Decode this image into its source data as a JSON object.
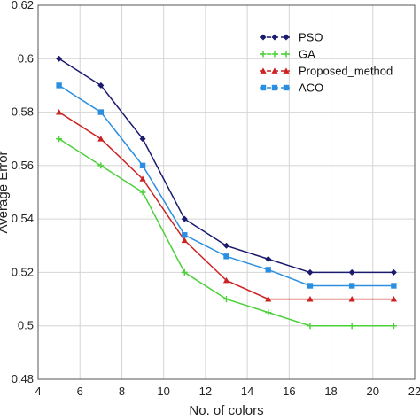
{
  "chart_data": {
    "type": "line",
    "title": "",
    "xlabel": "No. of colors",
    "ylabel": "Average Error",
    "xlim": [
      4,
      22
    ],
    "ylim": [
      0.48,
      0.62
    ],
    "xticks": [
      4,
      6,
      8,
      10,
      12,
      14,
      16,
      18,
      20,
      22
    ],
    "yticks": [
      0.48,
      0.5,
      0.52,
      0.54,
      0.56,
      0.58,
      0.6,
      0.62
    ],
    "ytick_labels": [
      "0.48",
      "0.5",
      "0.52",
      "0.54",
      "0.56",
      "0.58",
      "0.6",
      "0.62"
    ],
    "grid": true,
    "legend_position": "top-right",
    "x": [
      5,
      7,
      9,
      11,
      13,
      15,
      17,
      19,
      21
    ],
    "series": [
      {
        "name": "PSO",
        "color": "#1a1a6e",
        "marker": "diamond",
        "values": [
          0.6,
          0.59,
          0.57,
          0.54,
          0.53,
          0.525,
          0.52,
          0.52,
          0.52
        ]
      },
      {
        "name": "GA",
        "color": "#4cd13a",
        "marker": "plus",
        "values": [
          0.57,
          0.56,
          0.55,
          0.52,
          0.51,
          0.505,
          0.5,
          0.5,
          0.5
        ]
      },
      {
        "name": "Proposed_method",
        "color": "#cc2222",
        "marker": "triangle",
        "values": [
          0.58,
          0.57,
          0.555,
          0.532,
          0.517,
          0.51,
          0.51,
          0.51,
          0.51
        ]
      },
      {
        "name": "ACO",
        "color": "#2a8fe0",
        "marker": "square",
        "values": [
          0.59,
          0.58,
          0.56,
          0.534,
          0.526,
          0.521,
          0.515,
          0.515,
          0.515
        ]
      }
    ]
  }
}
